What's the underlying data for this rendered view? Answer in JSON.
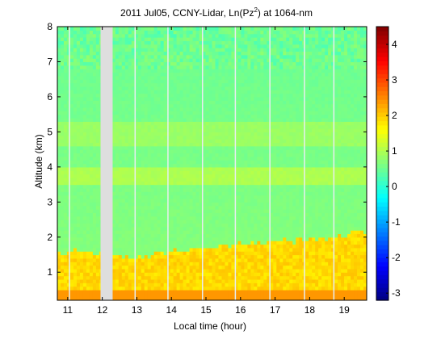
{
  "chart_data": {
    "type": "heatmap",
    "title_main": "2011 Jul05, CCNY-Lidar, Ln(Pz",
    "title_sup": "2",
    "title_end": ") at 1064-nm",
    "xlabel": "Local time (hour)",
    "ylabel": "Altitude (km)",
    "xlim": [
      10.7,
      19.65
    ],
    "ylim": [
      0.2,
      8
    ],
    "xticks": [
      "11",
      "12",
      "13",
      "14",
      "15",
      "16",
      "17",
      "18",
      "19"
    ],
    "yticks": [
      "1",
      "2",
      "3",
      "4",
      "5",
      "6",
      "7",
      "8"
    ],
    "colorbar": {
      "range": [
        -3.2,
        4.5
      ],
      "ticks": [
        "-3",
        "-2",
        "-1",
        "0",
        "1",
        "2",
        "3",
        "4"
      ],
      "colormap": "jet"
    },
    "background_value": 0.7,
    "boundary_layer": {
      "value": 1.9,
      "top_km": [
        {
          "t": 10.7,
          "h": 1.55
        },
        {
          "t": 11.5,
          "h": 1.6
        },
        {
          "t": 12.3,
          "h": 1.55
        },
        {
          "t": 12.8,
          "h": 1.4
        },
        {
          "t": 13.2,
          "h": 1.45
        },
        {
          "t": 14.0,
          "h": 1.6
        },
        {
          "t": 15.0,
          "h": 1.75
        },
        {
          "t": 16.0,
          "h": 1.8
        },
        {
          "t": 17.0,
          "h": 1.85
        },
        {
          "t": 18.0,
          "h": 1.95
        },
        {
          "t": 19.0,
          "h": 2.05
        },
        {
          "t": 19.65,
          "h": 2.2
        }
      ]
    },
    "surface_layer": {
      "value": 2.4,
      "top_km": 0.45
    },
    "aloft_layers": [
      {
        "base_km": 3.5,
        "top_km": 4.0,
        "value": 1.0
      },
      {
        "base_km": 4.6,
        "top_km": 5.3,
        "value": 0.85
      }
    ],
    "data_gaps": [
      {
        "start": 11.95,
        "end": 12.3,
        "color": "#dedede"
      }
    ],
    "vertical_gap_lines": [
      11.05,
      12.1,
      12.95,
      13.9,
      14.9,
      15.85,
      16.85,
      17.85,
      18.7
    ]
  }
}
